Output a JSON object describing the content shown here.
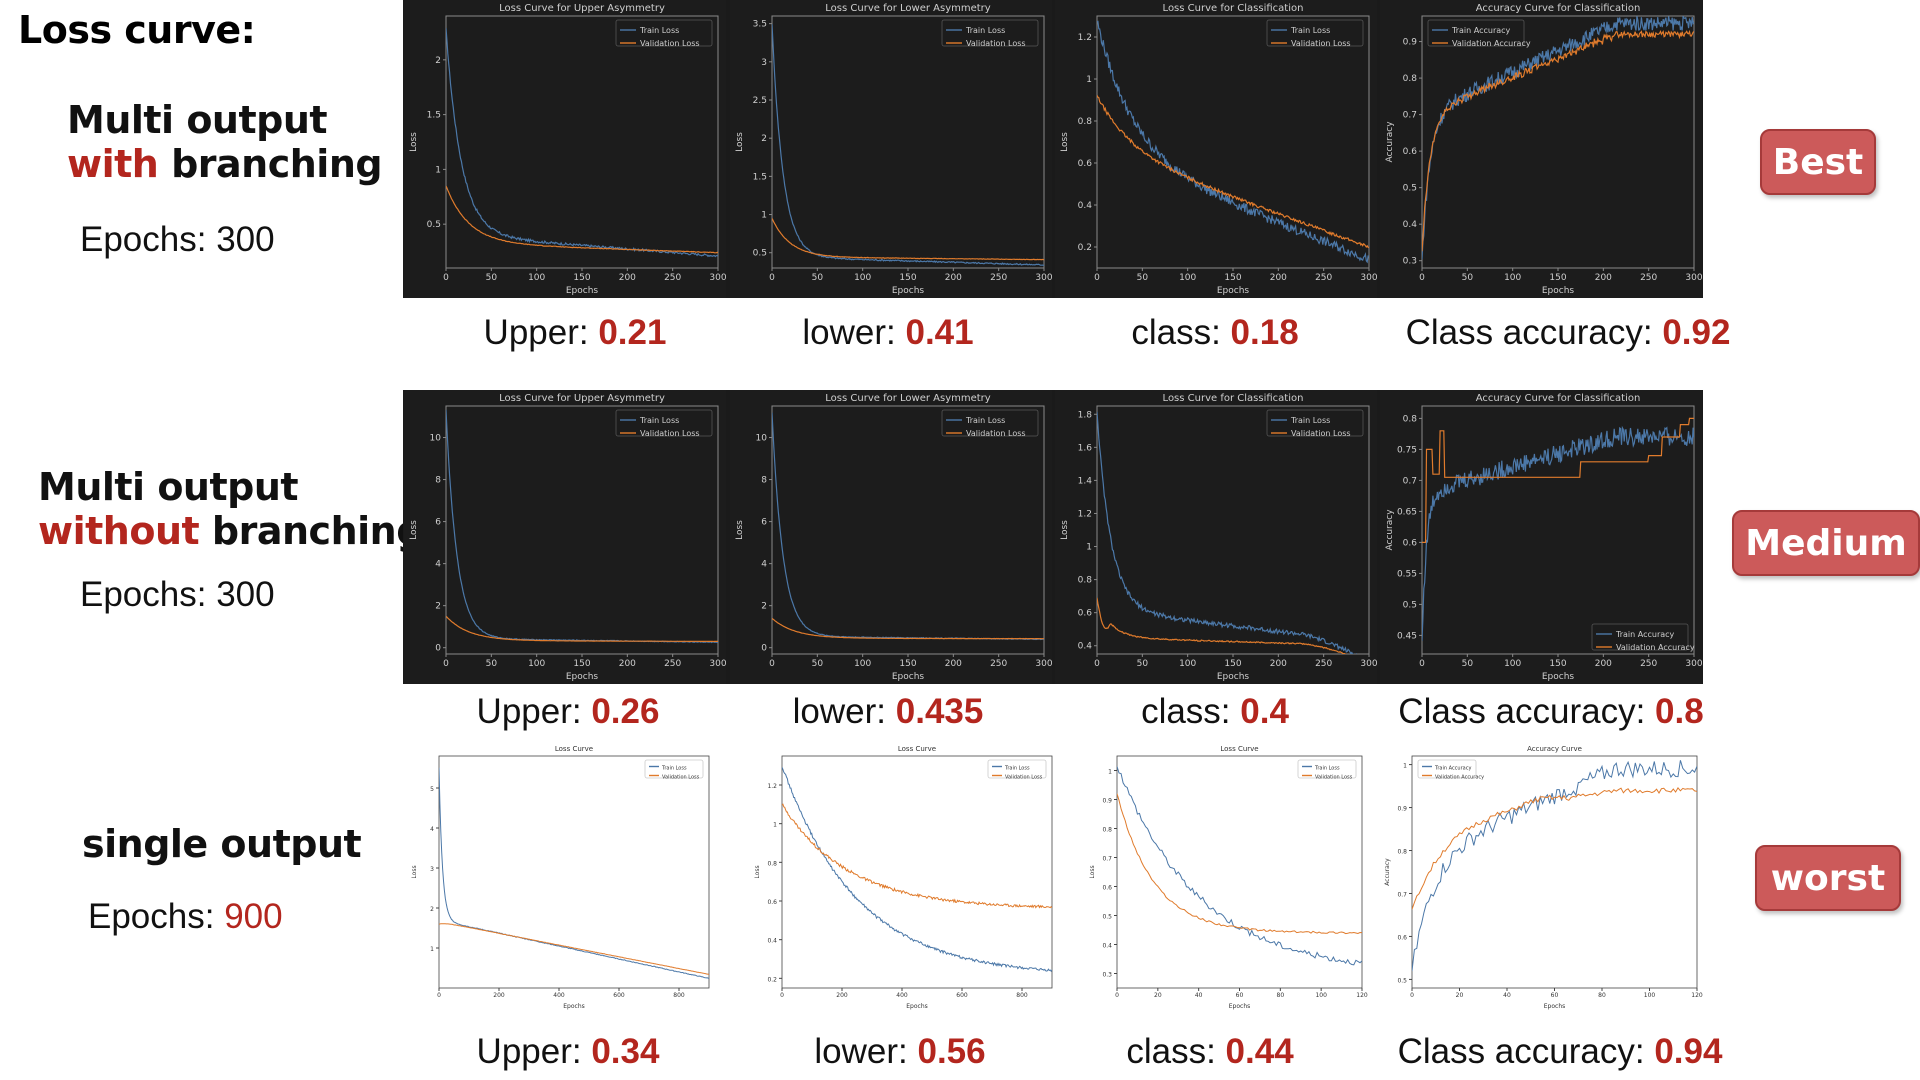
{
  "slide": {
    "title": "Loss curve:"
  },
  "rows": [
    {
      "method_line1_a": "Multi output",
      "method_line2_hl": "with",
      "method_line2_b": " branching",
      "epochs_label": "Epochs: ",
      "epochs_value": "300",
      "badge": "Best",
      "metrics": [
        {
          "label": "Upper: ",
          "value": "0.21"
        },
        {
          "label": "lower: ",
          "value": "0.41"
        },
        {
          "label": "class: ",
          "value": "0.18"
        },
        {
          "label": "Class accuracy: ",
          "value": "0.92"
        }
      ]
    },
    {
      "method_line1_a": "Multi output",
      "method_line2_hl": "without",
      "method_line2_b": " branching",
      "epochs_label": "Epochs: ",
      "epochs_value": "300",
      "badge": "Medium",
      "metrics": [
        {
          "label": "Upper: ",
          "value": "0.26"
        },
        {
          "label": "lower: ",
          "value": "0.435"
        },
        {
          "label": "class: ",
          "value": "0.4"
        },
        {
          "label": "Class accuracy: ",
          "value": "0.8"
        }
      ]
    },
    {
      "method_line1_a": "single output",
      "method_line2_hl": "",
      "method_line2_b": "",
      "epochs_label": "Epochs: ",
      "epochs_value": "900",
      "badge": "worst",
      "metrics": [
        {
          "label": "Upper: ",
          "value": "0.34"
        },
        {
          "label": "lower: ",
          "value": "0.56"
        },
        {
          "label": "class: ",
          "value": "0.44"
        },
        {
          "label": "Class accuracy: ",
          "value": "0.94"
        }
      ]
    }
  ],
  "colors": {
    "train": "#4c78a8",
    "val": "#e07b2c",
    "accent": "#b3261e",
    "badge": "#cc5a5a",
    "dark_bg": "#1a1a1a"
  },
  "chart_data": [
    {
      "type": "line",
      "theme": "dark",
      "title": "Loss Curve for Upper Asymmetry",
      "xlabel": "Epochs",
      "ylabel": "Loss",
      "xlim": [
        0,
        300
      ],
      "ylim": [
        0.1,
        2.4
      ],
      "xticks": [
        0,
        50,
        100,
        150,
        200,
        250,
        300
      ],
      "yticks": [
        0.5,
        1.0,
        1.5,
        2.0
      ],
      "legend": "top-right",
      "series": [
        {
          "name": "Train Loss",
          "kind": "decay",
          "start": 2.28,
          "end": 0.21,
          "rate": 18,
          "knee": 0.55,
          "noise": 0.012
        },
        {
          "name": "Validation Loss",
          "kind": "decay",
          "start": 0.85,
          "end": 0.24,
          "rate": 12,
          "knee": 0.25,
          "noise": 0.003
        }
      ]
    },
    {
      "type": "line",
      "theme": "dark",
      "title": "Loss Curve for Lower Asymmetry",
      "xlabel": "Epochs",
      "ylabel": "Loss",
      "xlim": [
        0,
        300
      ],
      "ylim": [
        0.3,
        3.6
      ],
      "xticks": [
        0,
        50,
        100,
        150,
        200,
        250,
        300
      ],
      "yticks": [
        0.5,
        1.0,
        1.5,
        2.0,
        2.5,
        3.0,
        3.5
      ],
      "legend": "top-right",
      "series": [
        {
          "name": "Train Loss",
          "kind": "decay",
          "start": 3.5,
          "end": 0.34,
          "rate": 25,
          "knee": 0.3,
          "noise": 0.01
        },
        {
          "name": "Validation Loss",
          "kind": "decay",
          "start": 0.95,
          "end": 0.41,
          "rate": 15,
          "knee": 0.1,
          "noise": 0.003
        }
      ]
    },
    {
      "type": "line",
      "theme": "dark",
      "title": "Loss Curve for Classification",
      "xlabel": "Epochs",
      "ylabel": "Loss",
      "xlim": [
        0,
        300
      ],
      "ylim": [
        0.1,
        1.3
      ],
      "xticks": [
        0,
        50,
        100,
        150,
        200,
        250,
        300
      ],
      "yticks": [
        0.2,
        0.4,
        0.6,
        0.8,
        1.0,
        1.2
      ],
      "legend": "top-right",
      "series": [
        {
          "name": "Train Loss",
          "kind": "decay",
          "start": 1.28,
          "end": 0.14,
          "rate": 8,
          "knee": 0.0,
          "linear": 0.52,
          "noise": 0.025
        },
        {
          "name": "Validation Loss",
          "kind": "decay",
          "start": 0.92,
          "end": 0.2,
          "rate": 8,
          "knee": 0.0,
          "linear": 0.47,
          "noise": 0.008
        }
      ]
    },
    {
      "type": "line",
      "theme": "dark",
      "title": "Accuracy Curve for Classification",
      "xlabel": "Epochs",
      "ylabel": "Accuracy",
      "xlim": [
        0,
        300
      ],
      "ylim": [
        0.28,
        0.97
      ],
      "xticks": [
        0,
        50,
        100,
        150,
        200,
        250,
        300
      ],
      "yticks": [
        0.3,
        0.4,
        0.5,
        0.6,
        0.7,
        0.8,
        0.9
      ],
      "legend": "top-left",
      "series": [
        {
          "name": "Train Accuracy",
          "kind": "rise",
          "start": 0.3,
          "plateau": 0.7,
          "end": 0.95,
          "rate": 12,
          "noise": 0.02
        },
        {
          "name": "Validation Accuracy",
          "kind": "rise",
          "start": 0.32,
          "plateau": 0.7,
          "end": 0.92,
          "rate": 12,
          "noise": 0.008,
          "step": true
        }
      ]
    },
    {
      "type": "line",
      "theme": "dark",
      "title": "Loss Curve for Upper Asymmetry",
      "xlabel": "Epochs",
      "ylabel": "Loss",
      "xlim": [
        0,
        300
      ],
      "ylim": [
        -0.3,
        11.5
      ],
      "xticks": [
        0,
        50,
        100,
        150,
        200,
        250,
        300
      ],
      "yticks": [
        0,
        2,
        4,
        6,
        8,
        10
      ],
      "legend": "top-right",
      "series": [
        {
          "name": "Train Loss",
          "kind": "decay",
          "start": 11.3,
          "end": 0.26,
          "rate": 25,
          "knee": 0.5,
          "noise": 0.02
        },
        {
          "name": "Validation Loss",
          "kind": "decay",
          "start": 1.5,
          "end": 0.3,
          "rate": 12,
          "knee": 0.1,
          "noise": 0.005
        }
      ]
    },
    {
      "type": "line",
      "theme": "dark",
      "title": "Loss Curve for Lower Asymmetry",
      "xlabel": "Epochs",
      "ylabel": "Loss",
      "xlim": [
        0,
        300
      ],
      "ylim": [
        -0.3,
        11.5
      ],
      "xticks": [
        0,
        50,
        100,
        150,
        200,
        250,
        300
      ],
      "yticks": [
        0,
        2,
        4,
        6,
        8,
        10
      ],
      "legend": "top-right",
      "series": [
        {
          "name": "Train Loss",
          "kind": "decay",
          "start": 11.2,
          "end": 0.4,
          "rate": 25,
          "knee": 0.4,
          "noise": 0.02
        },
        {
          "name": "Validation Loss",
          "kind": "decay",
          "start": 1.4,
          "end": 0.43,
          "rate": 12,
          "knee": 0.05,
          "noise": 0.005
        }
      ]
    },
    {
      "type": "line",
      "theme": "dark",
      "title": "Loss Curve for Classification",
      "xlabel": "Epochs",
      "ylabel": "Loss",
      "xlim": [
        0,
        300
      ],
      "ylim": [
        0.35,
        1.85
      ],
      "xticks": [
        0,
        50,
        100,
        150,
        200,
        250,
        300
      ],
      "yticks": [
        0.4,
        0.6,
        0.8,
        1.0,
        1.2,
        1.4,
        1.6,
        1.8
      ],
      "legend": "top-right",
      "series": [
        {
          "name": "Train Loss",
          "kind": "decay",
          "start": 1.82,
          "end": 0.42,
          "rate": 20,
          "knee": 0.0,
          "linear": 0.2,
          "noise": 0.015,
          "tail_drop": 0.2
        },
        {
          "name": "Validation Loss",
          "kind": "decay",
          "start": 0.69,
          "end": 0.4,
          "rate": 20,
          "knee": 0.0,
          "linear": 0.05,
          "noise": 0.004,
          "tail_drop": 0.17,
          "dip": true
        }
      ]
    },
    {
      "type": "line",
      "theme": "dark",
      "title": "Accuracy Curve for Classification",
      "xlabel": "Epochs",
      "ylabel": "Accuracy",
      "xlim": [
        0,
        300
      ],
      "ylim": [
        0.42,
        0.82
      ],
      "xticks": [
        0,
        50,
        100,
        150,
        200,
        250,
        300
      ],
      "yticks": [
        0.45,
        0.5,
        0.55,
        0.6,
        0.65,
        0.7,
        0.75,
        0.8
      ],
      "legend": "bottom-right",
      "series": [
        {
          "name": "Train Accuracy",
          "kind": "rise",
          "start": 0.44,
          "plateau": 0.68,
          "end": 0.77,
          "rate": 20,
          "noise": 0.015
        },
        {
          "name": "Validation Accuracy",
          "kind": "stepwise",
          "start": 0.6,
          "levels": [
            [
              0,
              0.6
            ],
            [
              5,
              0.75
            ],
            [
              12,
              0.71
            ],
            [
              20,
              0.78
            ],
            [
              25,
              0.705
            ],
            [
              175,
              0.73
            ],
            [
              250,
              0.74
            ],
            [
              265,
              0.77
            ],
            [
              285,
              0.79
            ],
            [
              295,
              0.8
            ]
          ],
          "noise": 0.0
        }
      ]
    },
    {
      "type": "line",
      "theme": "light",
      "title": "Loss Curve",
      "xlabel": "Epochs",
      "ylabel": "Loss",
      "xlim": [
        0,
        900
      ],
      "ylim": [
        0,
        5.8
      ],
      "xticks": [
        0,
        200,
        400,
        600,
        800
      ],
      "yticks": [
        1,
        2,
        3,
        4,
        5
      ],
      "legend": "top-right",
      "series": [
        {
          "name": "Train Loss",
          "kind": "decay",
          "start": 5.5,
          "end": 0.24,
          "rate": 80,
          "knee": 1.3,
          "linear": 1.0,
          "noise": 0.01
        },
        {
          "name": "Validation Loss",
          "kind": "decay",
          "start": 1.6,
          "end": 0.34,
          "rate": 40,
          "knee": 1.2,
          "linear": 0.9,
          "noise": 0.004
        }
      ]
    },
    {
      "type": "line",
      "theme": "light",
      "title": "Loss Curve",
      "xlabel": "Epochs",
      "ylabel": "Loss",
      "xlim": [
        0,
        900
      ],
      "ylim": [
        0.15,
        1.35
      ],
      "xticks": [
        0,
        200,
        400,
        600,
        800
      ],
      "yticks": [
        0.2,
        0.4,
        0.6,
        0.8,
        1.0,
        1.2
      ],
      "legend": "top-right",
      "series": [
        {
          "name": "Train Loss",
          "kind": "decay",
          "start": 1.3,
          "end": 0.21,
          "rate": 0,
          "knee": 0.0,
          "exp": 250,
          "noise": 0.008
        },
        {
          "name": "Validation Loss",
          "kind": "decay",
          "start": 1.1,
          "end": 0.56,
          "rate": 0,
          "knee": 0.0,
          "exp": 220,
          "noise": 0.008
        }
      ]
    },
    {
      "type": "line",
      "theme": "light",
      "title": "Loss Curve",
      "xlabel": "Epochs",
      "ylabel": "Loss",
      "xlim": [
        0,
        120
      ],
      "ylim": [
        0.25,
        1.05
      ],
      "xticks": [
        0,
        20,
        40,
        60,
        80,
        100,
        120
      ],
      "yticks": [
        0.3,
        0.4,
        0.5,
        0.6,
        0.7,
        0.8,
        0.9,
        1.0
      ],
      "legend": "top-right",
      "series": [
        {
          "name": "Train Loss",
          "kind": "decay",
          "start": 1.02,
          "end": 0.3,
          "rate": 0,
          "knee": 0.0,
          "exp": 40,
          "noise": 0.012
        },
        {
          "name": "Validation Loss",
          "kind": "decay",
          "start": 0.92,
          "end": 0.44,
          "rate": 0,
          "knee": 0.0,
          "exp": 18,
          "noise": 0.004
        }
      ]
    },
    {
      "type": "line",
      "theme": "light",
      "title": "Accuracy Curve",
      "xlabel": "Epochs",
      "ylabel": "Accuracy",
      "xlim": [
        0,
        120
      ],
      "ylim": [
        0.48,
        1.02
      ],
      "xticks": [
        0,
        20,
        40,
        60,
        80,
        100,
        120
      ],
      "yticks": [
        0.5,
        0.6,
        0.7,
        0.8,
        0.9,
        1.0
      ],
      "legend": "top-left",
      "series": [
        {
          "name": "Train Accuracy",
          "kind": "rise",
          "start": 0.52,
          "plateau": 0.78,
          "end": 0.99,
          "rate": 5,
          "noise": 0.02
        },
        {
          "name": "Validation Accuracy",
          "kind": "rise",
          "start": 0.66,
          "plateau": 0.87,
          "end": 0.94,
          "rate": 3,
          "noise": 0.006,
          "peak": 0.96
        }
      ]
    }
  ]
}
